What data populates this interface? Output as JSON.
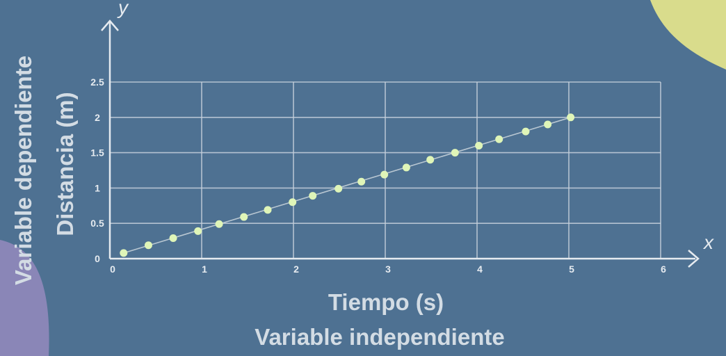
{
  "chart_data": {
    "type": "scatter",
    "title": "",
    "xlabel": "Tiempo (s)",
    "ylabel": "Distancia (m)",
    "x_variable_label": "Variable independiente",
    "y_variable_label": "Variable dependiente",
    "x_axis_letter": "x",
    "y_axis_letter": "y",
    "xlim": [
      0,
      6
    ],
    "ylim": [
      0,
      2.5
    ],
    "x_ticks": [
      "0",
      "1",
      "2",
      "3",
      "4",
      "5",
      "6"
    ],
    "y_ticks": [
      "0",
      "0.5",
      "1",
      "1.5",
      "2",
      "2.5"
    ],
    "grid": true,
    "trend_line": true,
    "series": [
      {
        "x": [
          0.15,
          0.42,
          0.69,
          0.96,
          1.19,
          1.46,
          1.72,
          1.99,
          2.21,
          2.49,
          2.74,
          2.99,
          3.23,
          3.49,
          3.76,
          4.02,
          4.24,
          4.53,
          4.77,
          5.02
        ],
        "y": [
          0.08,
          0.19,
          0.29,
          0.39,
          0.49,
          0.59,
          0.69,
          0.8,
          0.89,
          0.99,
          1.09,
          1.19,
          1.29,
          1.4,
          1.5,
          1.6,
          1.69,
          1.8,
          1.9,
          2.0
        ]
      }
    ]
  },
  "colors": {
    "background": "#4e7192",
    "grid": "#c6d1dc",
    "points": "#dff5b8",
    "trend_line": "#b9c7d2",
    "text": "#e6ebf0",
    "corner_yellow": "#d9dc8c",
    "corner_purple": "#8a86b7"
  }
}
